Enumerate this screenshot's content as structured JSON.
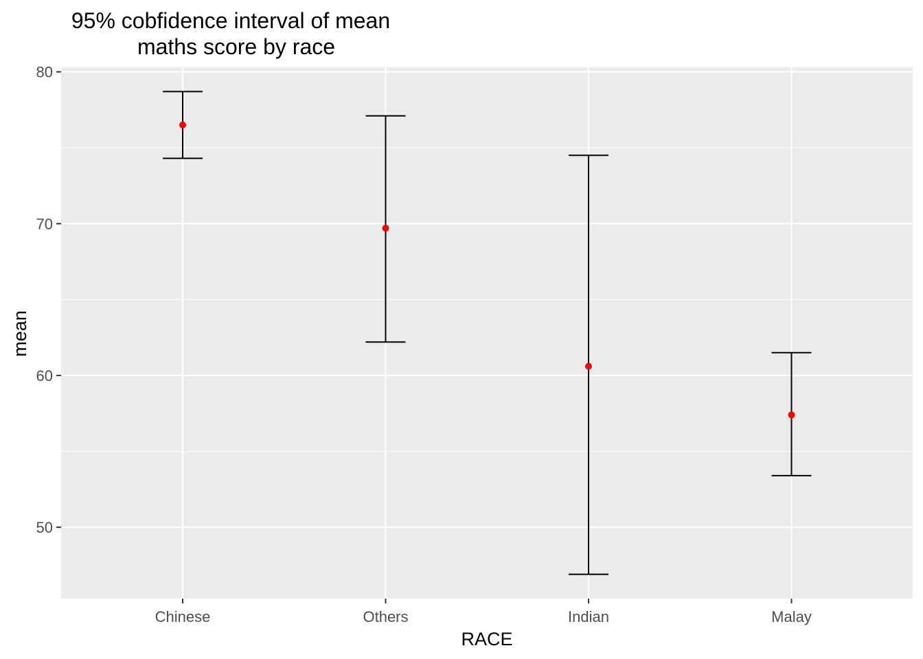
{
  "chart_data": {
    "type": "errorbar",
    "title_lines": [
      "95% cobfidence interval of mean",
      "maths score by race"
    ],
    "xlabel": "RACE",
    "ylabel": "mean",
    "categories": [
      "Chinese",
      "Others",
      "Indian",
      "Malay"
    ],
    "series": [
      {
        "name": "mean",
        "values": [
          76.5,
          69.7,
          60.6,
          57.4
        ],
        "lower": [
          74.3,
          62.2,
          46.9,
          53.4
        ],
        "upper": [
          78.7,
          77.1,
          74.5,
          61.5
        ]
      }
    ],
    "ylim": [
      45.3,
      80.3
    ],
    "yticks": [
      50,
      60,
      70,
      80
    ],
    "yticks_minor": [
      55,
      65,
      75
    ],
    "grid": true,
    "colors": {
      "panel": "#ebebeb",
      "grid": "#ffffff",
      "point": "#ff0000",
      "errorbar": "#000000",
      "tick": "#333333"
    }
  }
}
